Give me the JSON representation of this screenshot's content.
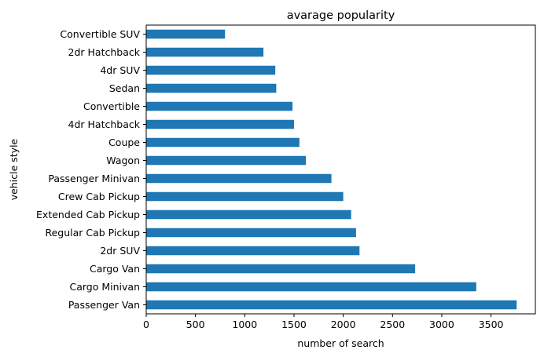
{
  "chart_data": {
    "type": "bar",
    "orientation": "horizontal",
    "title": "avarage popularity",
    "xlabel": "number of search",
    "ylabel": "vehicle style",
    "xlim": [
      0,
      3950
    ],
    "xticks": [
      0,
      500,
      1000,
      1500,
      2000,
      2500,
      3000,
      3500
    ],
    "grid": false,
    "bar_color": "#1f77b4",
    "categories": [
      "Passenger Van",
      "Cargo Minivan",
      "Cargo Van",
      "2dr SUV",
      "Regular Cab Pickup",
      "Extended Cab Pickup",
      "Crew Cab Pickup",
      "Passenger Minivan",
      "Wagon",
      "Coupe",
      "4dr Hatchback",
      "Convertible",
      "Sedan",
      "4dr SUV",
      "2dr Hatchback",
      "Convertible SUV"
    ],
    "values": [
      3760,
      3350,
      2730,
      2165,
      2130,
      2080,
      2000,
      1880,
      1620,
      1555,
      1500,
      1485,
      1320,
      1310,
      1190,
      800
    ]
  }
}
